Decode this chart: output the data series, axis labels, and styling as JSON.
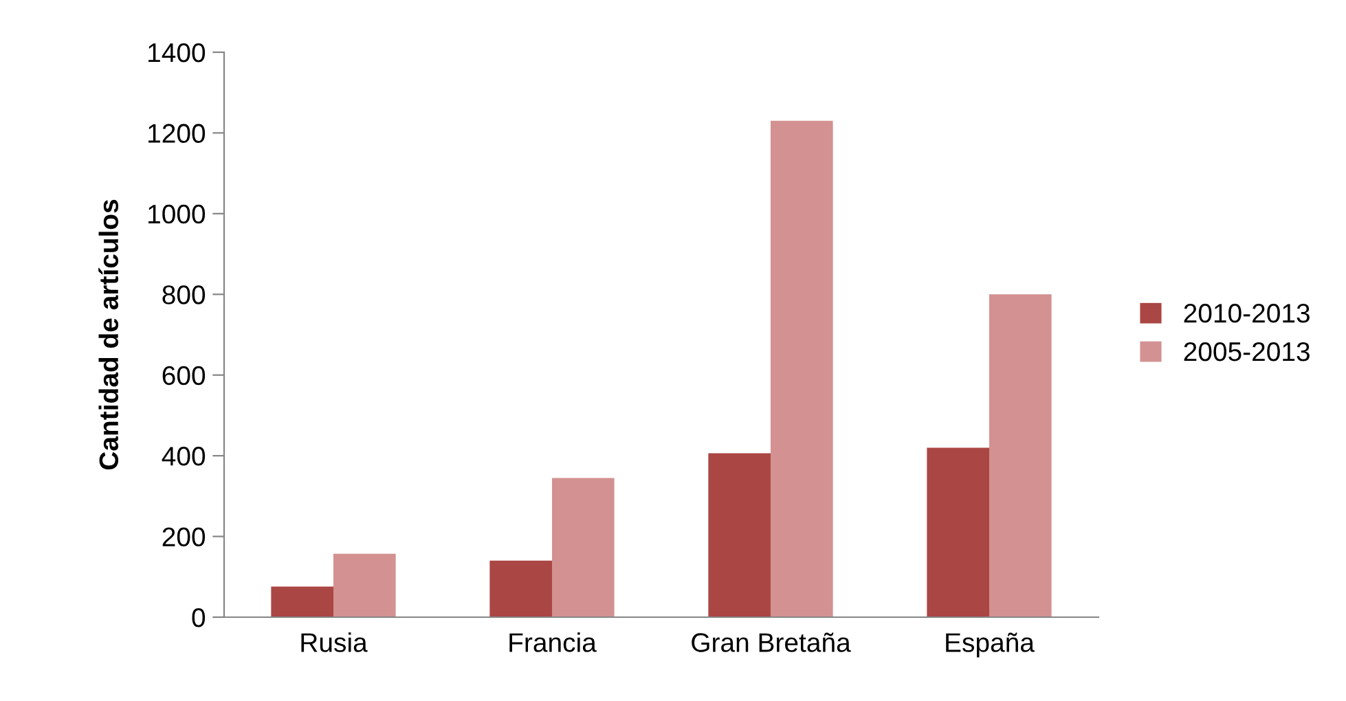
{
  "chart_data": {
    "type": "bar",
    "ylabel": "Cantidad de artículos",
    "categories": [
      "Rusia",
      "Francia",
      "Gran Bretaña",
      "España"
    ],
    "series": [
      {
        "name": "2010-2013",
        "color": "#aa4643",
        "values": [
          76,
          140,
          406,
          420
        ]
      },
      {
        "name": "2005-2013",
        "color": "#d39191",
        "values": [
          157,
          345,
          1230,
          800
        ]
      }
    ],
    "ylim": [
      0,
      1400
    ],
    "yticks": [
      0,
      200,
      400,
      600,
      800,
      1000,
      1200,
      1400
    ],
    "grid": false,
    "legend": "right"
  }
}
